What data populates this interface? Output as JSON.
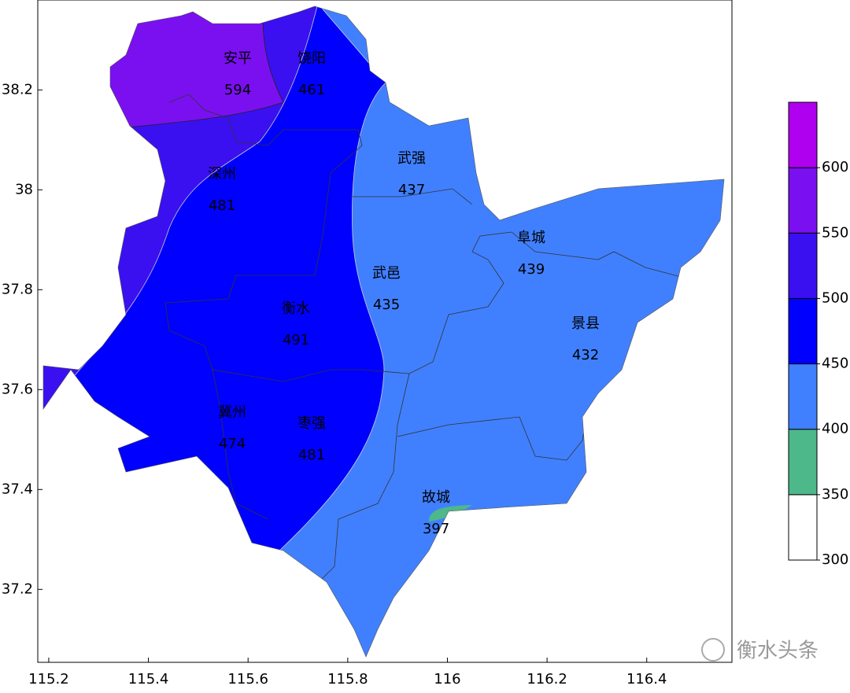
{
  "chart_data": {
    "type": "map",
    "xlim": [
      115.178,
      116.571
    ],
    "ylim": [
      37.054,
      38.38
    ],
    "xticks": [
      115.2,
      115.4,
      115.6,
      115.8,
      116,
      116.2,
      116.4
    ],
    "yticks": [
      37.2,
      37.4,
      37.6,
      37.8,
      38,
      38.2
    ],
    "stations": [
      {
        "name": "安平",
        "value": 594
      },
      {
        "name": "饶阳",
        "value": 461
      },
      {
        "name": "深州",
        "value": 481
      },
      {
        "name": "武强",
        "value": 437
      },
      {
        "name": "阜城",
        "value": 439
      },
      {
        "name": "武邑",
        "value": 435
      },
      {
        "name": "衡水",
        "value": 491
      },
      {
        "name": "景县",
        "value": 432
      },
      {
        "name": "冀州",
        "value": 474
      },
      {
        "name": "枣强",
        "value": 481
      },
      {
        "name": "故城",
        "value": 397
      }
    ],
    "colorbar": {
      "lim": [
        300,
        650
      ],
      "ticks": [
        300,
        350,
        400,
        450,
        500,
        550,
        600
      ],
      "colors": [
        "#ffffff",
        "#4db88a",
        "#4080ff",
        "#0000ff",
        "#3a10f0",
        "#7a10f0",
        "#b000f0"
      ]
    },
    "watermark": "衡水头条"
  }
}
